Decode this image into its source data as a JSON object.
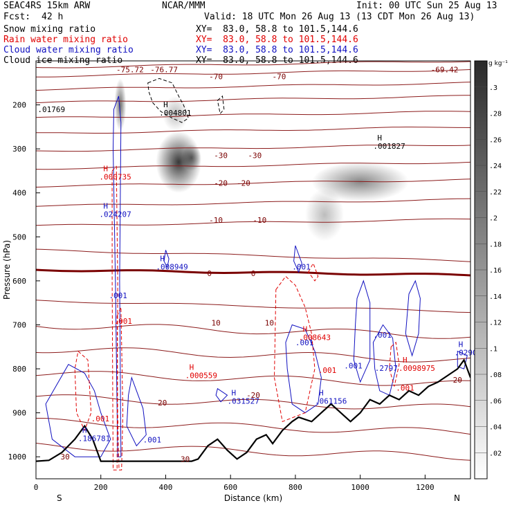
{
  "header": {
    "model": "SEAC4RS 15km ARW",
    "org": "NCAR/MMM",
    "init": "Init: 00 UTC Sun 25 Aug 13",
    "fcst_label": "Fcst:",
    "fcst_value": "42 h",
    "valid": "Valid: 18 UTC Mon 26 Aug 13 (13 CDT Mon 26 Aug 13)",
    "fields": [
      {
        "name": "Snow mixing ratio",
        "xy": "XY=  83.0, 58.8 to 101.5,144.6",
        "color": "#000000"
      },
      {
        "name": "Rain water mixing ratio",
        "xy": "XY=  83.0, 58.8 to 101.5,144.6",
        "color": "#e00000"
      },
      {
        "name": "Cloud water mixing ratio",
        "xy": "XY=  83.0, 58.8 to 101.5,144.6",
        "color": "#1010c0"
      },
      {
        "name": "Cloud ice mixing ratio",
        "xy": "XY=  83.0, 58.8 to 101.5,144.6",
        "color": "#000000"
      }
    ]
  },
  "chart_data": {
    "type": "cross-section",
    "xlabel": "Distance (km)",
    "ylabel": "Pressure (hPa)",
    "xlim": [
      0,
      1340
    ],
    "ylim": [
      1050,
      100
    ],
    "x_ticks": [
      0,
      200,
      400,
      600,
      800,
      1000,
      1200
    ],
    "y_ticks": [
      200,
      300,
      400,
      500,
      600,
      700,
      800,
      900,
      1000
    ],
    "x_end_labels": {
      "left": "S",
      "right": "N"
    },
    "colorbar": {
      "unit": "g kg⁻¹",
      "ticks": [
        ".02",
        ".04",
        ".06",
        ".08",
        ".1",
        ".12",
        ".14",
        ".16",
        ".18",
        ".2",
        ".22",
        ".24",
        ".26",
        ".28",
        ".3"
      ]
    },
    "temperature_labels": [
      {
        "text": "-75.72",
        "x": 290,
        "p": 120
      },
      {
        "text": "-76.77",
        "x": 395,
        "p": 120
      },
      {
        "text": "-69.42",
        "x": 1260,
        "p": 120
      },
      {
        "text": "-70",
        "x": 555,
        "p": 135
      },
      {
        "text": "-70",
        "x": 750,
        "p": 135
      },
      {
        "text": "-30",
        "x": 570,
        "p": 315
      },
      {
        "text": "-30",
        "x": 675,
        "p": 315
      },
      {
        "text": "-20",
        "x": 570,
        "p": 378
      },
      {
        "text": "-20",
        "x": 640,
        "p": 378
      },
      {
        "text": "-10",
        "x": 555,
        "p": 462
      },
      {
        "text": "-10",
        "x": 690,
        "p": 462
      },
      {
        "text": "0",
        "x": 535,
        "p": 583
      },
      {
        "text": "0",
        "x": 670,
        "p": 583
      },
      {
        "text": "10",
        "x": 555,
        "p": 695
      },
      {
        "text": "10",
        "x": 720,
        "p": 695
      },
      {
        "text": "20",
        "x": 390,
        "p": 877
      },
      {
        "text": "-20",
        "x": 670,
        "p": 860
      },
      {
        "text": "20",
        "x": 1300,
        "p": 825
      },
      {
        "text": "30",
        "x": 90,
        "p": 1000
      },
      {
        "text": "30",
        "x": 460,
        "p": 1005
      }
    ],
    "max_labels": [
      {
        "text": ".01769",
        "x": 5,
        "p": 207,
        "color": "#000000"
      },
      {
        "text": ".004801",
        "x": 380,
        "p": 215,
        "color": "#000000",
        "H": true
      },
      {
        "text": ".001827",
        "x": 1040,
        "p": 290,
        "color": "#000000",
        "H": true
      },
      {
        "text": ".000735",
        "x": 195,
        "p": 360,
        "color": "#e00000",
        "H": true
      },
      {
        "text": ".024207",
        "x": 195,
        "p": 445,
        "color": "#1010c0",
        "H": true
      },
      {
        "text": ".008949",
        "x": 370,
        "p": 565,
        "color": "#1010c0",
        "H": true
      },
      {
        "text": ".001",
        "x": 790,
        "p": 565,
        "color": "#1010c0"
      },
      {
        "text": ".001",
        "x": 225,
        "p": 630,
        "color": "#1010c0"
      },
      {
        "text": ".001",
        "x": 240,
        "p": 688,
        "color": "#e00000"
      },
      {
        "text": ".008643",
        "x": 810,
        "p": 725,
        "color": "#e00000",
        "H": true
      },
      {
        "text": ".001",
        "x": 800,
        "p": 737,
        "color": "#1010c0"
      },
      {
        "text": ".001",
        "x": 1040,
        "p": 720,
        "color": "#1010c0"
      },
      {
        "text": ".0290",
        "x": 1290,
        "p": 760,
        "color": "#1010c0",
        "H": true
      },
      {
        "text": ".001",
        "x": 950,
        "p": 790,
        "color": "#1010c0"
      },
      {
        "text": ".001",
        "x": 870,
        "p": 800,
        "color": "#e00000"
      },
      {
        "text": ".2797",
        "x": 1045,
        "p": 795,
        "color": "#1010c0"
      },
      {
        "text": ".0098975",
        "x": 1118,
        "p": 795,
        "color": "#e00000",
        "H": true
      },
      {
        "text": ".000559",
        "x": 460,
        "p": 812,
        "color": "#e00000",
        "H": true
      },
      {
        "text": ".001",
        "x": 1110,
        "p": 840,
        "color": "#e00000"
      },
      {
        "text": ".031527",
        "x": 590,
        "p": 870,
        "color": "#1010c0",
        "H": true
      },
      {
        "text": ".061156",
        "x": 860,
        "p": 870,
        "color": "#1010c0",
        "H": true
      },
      {
        "text": ".001",
        "x": 170,
        "p": 910,
        "color": "#e00000"
      },
      {
        "text": ".186781",
        "x": 130,
        "p": 955,
        "color": "#1010c0",
        "H": true
      },
      {
        "text": ".001",
        "x": 330,
        "p": 958,
        "color": "#1010c0"
      }
    ],
    "snow_blobs": [
      {
        "x": 260,
        "p": 200,
        "rx": 18,
        "rp": 60,
        "v": 0.22
      },
      {
        "x": 440,
        "p": 330,
        "rx": 70,
        "rp": 70,
        "v": 0.3
      },
      {
        "x": 480,
        "p": 320,
        "rx": 30,
        "rp": 30,
        "v": 0.2
      },
      {
        "x": 1000,
        "p": 375,
        "rx": 150,
        "rp": 45,
        "v": 0.18
      },
      {
        "x": 890,
        "p": 450,
        "rx": 60,
        "rp": 60,
        "v": 0.1
      },
      {
        "x": 430,
        "p": 220,
        "rx": 40,
        "rp": 40,
        "v": 0.1
      }
    ]
  }
}
